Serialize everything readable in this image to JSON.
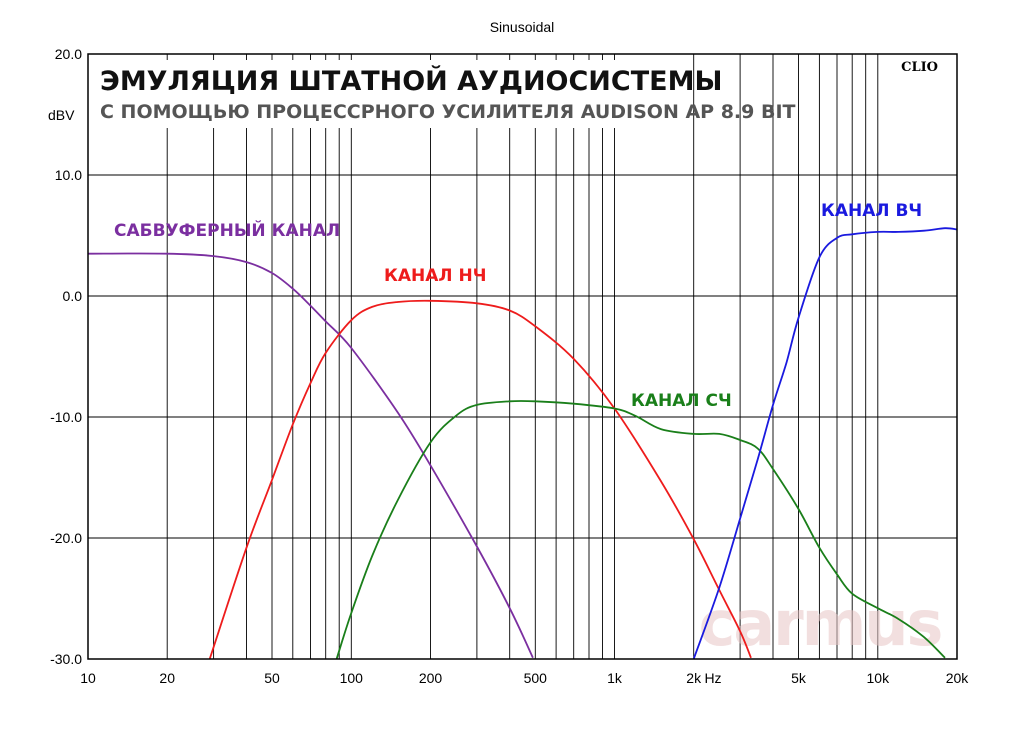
{
  "chart_data": {
    "type": "line",
    "top_title": "Sinusoidal",
    "title": "ЭМУЛЯЦИЯ ШТАТНОЙ АУДИОСИСТЕМЫ",
    "subtitle": "С ПОМОЩЬЮ ПРОЦЕССРНОГО УСИЛИТЕЛЯ AUDISON AP 8.9 BIT",
    "logo": "CLIO",
    "watermark": "carmus",
    "ylabel": "dBV",
    "xlabel": "Hz",
    "xscale": "log",
    "xlim": [
      10,
      20000
    ],
    "ylim": [
      -30,
      20
    ],
    "grid": true,
    "x_ticks": [
      {
        "value": 10,
        "label": "10"
      },
      {
        "value": 20,
        "label": "20"
      },
      {
        "value": 50,
        "label": "50"
      },
      {
        "value": 100,
        "label": "100"
      },
      {
        "value": 200,
        "label": "200"
      },
      {
        "value": 500,
        "label": "500"
      },
      {
        "value": 1000,
        "label": "1k"
      },
      {
        "value": 2000,
        "label": "2k"
      },
      {
        "value": 5000,
        "label": "5k"
      },
      {
        "value": 10000,
        "label": "10k"
      },
      {
        "value": 20000,
        "label": "20k"
      }
    ],
    "y_ticks": [
      {
        "value": 20,
        "label": "20.0"
      },
      {
        "value": 10,
        "label": "10.0"
      },
      {
        "value": 0,
        "label": "0.0"
      },
      {
        "value": -10,
        "label": "-10.0"
      },
      {
        "value": -20,
        "label": "-20.0"
      },
      {
        "value": -30,
        "label": "-30.0"
      }
    ],
    "series": [
      {
        "name": "САБВУФЕРНЫЙ КАНАЛ",
        "color": "#7b2fa0",
        "x": [
          10,
          20,
          30,
          40,
          50,
          60,
          70,
          80,
          100,
          150,
          200,
          300,
          400,
          490
        ],
        "y": [
          3.5,
          3.5,
          3.3,
          2.8,
          1.9,
          0.6,
          -0.8,
          -2.1,
          -4.3,
          -9.6,
          -14.0,
          -20.7,
          -25.8,
          -29.9
        ]
      },
      {
        "name": "КАНАЛ НЧ",
        "color": "#ee1c1c",
        "x": [
          29,
          40,
          50,
          60,
          70,
          80,
          100,
          120,
          150,
          200,
          300,
          400,
          500,
          700,
          1000,
          1500,
          2000,
          2500,
          3000,
          3300
        ],
        "y": [
          -30.0,
          -20.8,
          -15.2,
          -10.6,
          -7.2,
          -4.7,
          -2.0,
          -0.9,
          -0.5,
          -0.4,
          -0.6,
          -1.2,
          -2.5,
          -5.2,
          -9.3,
          -15.3,
          -20.1,
          -24.3,
          -27.7,
          -29.9
        ]
      },
      {
        "name": "КАНАЛ СЧ",
        "color": "#1a7f1a",
        "x": [
          88,
          100,
          120,
          150,
          200,
          250,
          300,
          400,
          500,
          700,
          1000,
          1200,
          1500,
          2000,
          2500,
          3000,
          3500,
          4000,
          5000,
          6000,
          7000,
          8000,
          10000,
          12000,
          15000,
          18000
        ],
        "y": [
          -30.0,
          -26.2,
          -21.5,
          -16.9,
          -12.1,
          -9.9,
          -9.0,
          -8.7,
          -8.7,
          -8.9,
          -9.3,
          -9.9,
          -11.0,
          -11.4,
          -11.4,
          -11.9,
          -12.6,
          -14.3,
          -17.6,
          -20.8,
          -23.0,
          -24.6,
          -25.8,
          -26.7,
          -28.2,
          -29.9
        ]
      },
      {
        "name": "КАНАЛ ВЧ",
        "color": "#1a1adf",
        "x": [
          2000,
          2500,
          3000,
          3500,
          4000,
          4500,
          5000,
          6000,
          7000,
          8000,
          10000,
          12000,
          15000,
          18000,
          20000
        ],
        "y": [
          -30.0,
          -24.1,
          -18.4,
          -13.5,
          -9.0,
          -5.5,
          -1.8,
          3.2,
          4.8,
          5.1,
          5.3,
          5.3,
          5.4,
          5.6,
          5.5
        ]
      }
    ]
  }
}
